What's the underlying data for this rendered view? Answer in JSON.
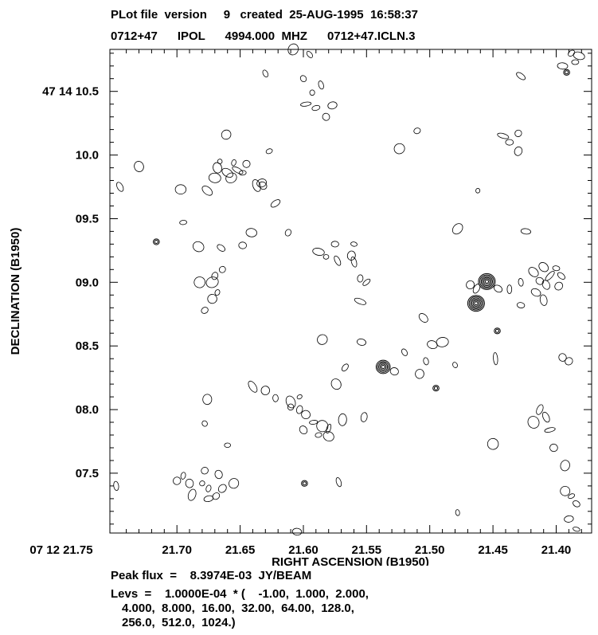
{
  "header": {
    "line1": "PLot file  version     9   created  25-AUG-1995  16:58:37",
    "line2": "0712+47      IPOL      4994.000  MHZ      0712+47.ICLN.3"
  },
  "footer": {
    "peak": "Peak flux  =    8.3974E-03  JY/BEAM",
    "levs1": "Levs  =    1.0000E-04  * (    -1.00,  1.000,  2.000,",
    "levs2": "4.000,  8.000,  16.00,  32.00,  64.00,  128.0,",
    "levs3": "256.0,  512.0,  1024.)"
  },
  "chart_data": {
    "type": "contour",
    "xlabel": "RIGHT  ASCENSION  (B1950)",
    "ylabel": "DECLINATION  (B1950)",
    "xlim": [
      21.753,
      21.372
    ],
    "ylim": [
      7.03,
      10.83
    ],
    "x_ticks": [
      {
        "value": 21.75,
        "label": "07  12  21.75"
      },
      {
        "value": 21.7,
        "label": "21.70"
      },
      {
        "value": 21.65,
        "label": "21.65"
      },
      {
        "value": 21.6,
        "label": "21.60"
      },
      {
        "value": 21.55,
        "label": "21.55"
      },
      {
        "value": 21.5,
        "label": "21.50"
      },
      {
        "value": 21.45,
        "label": "21.45"
      },
      {
        "value": 21.4,
        "label": "21.40"
      }
    ],
    "y_ticks": [
      {
        "value": 10.5,
        "label": "47  14  10.5"
      },
      {
        "value": 10.0,
        "label": "10.0"
      },
      {
        "value": 9.5,
        "label": "09.5"
      },
      {
        "value": 9.0,
        "label": "09.0"
      },
      {
        "value": 8.5,
        "label": "08.5"
      },
      {
        "value": 8.0,
        "label": "08.0"
      },
      {
        "value": 7.5,
        "label": "07.5"
      }
    ],
    "sources": [
      {
        "ra": 21.4549,
        "dec": 9.006,
        "rings": 6
      },
      {
        "ra": 21.4634,
        "dec": 8.835,
        "rings": 6
      },
      {
        "ra": 21.5369,
        "dec": 8.335,
        "rings": 5
      },
      {
        "ra": 21.4466,
        "dec": 8.618,
        "rings": 2
      },
      {
        "ra": 21.7163,
        "dec": 9.318,
        "rings": 2
      },
      {
        "ra": 21.4951,
        "dec": 8.168,
        "rings": 2
      },
      {
        "ra": 21.5991,
        "dec": 7.42,
        "rings": 2
      },
      {
        "ra": 21.3918,
        "dec": 10.65,
        "rings": 2
      }
    ],
    "contours": [
      [
        21.43,
        10.03
      ],
      [
        21.437,
        10.1
      ],
      [
        21.442,
        10.15
      ],
      [
        21.43,
        10.17
      ],
      [
        21.437,
        8.945
      ],
      [
        21.463,
        8.95
      ],
      [
        21.468,
        8.98
      ],
      [
        21.448,
        8.4
      ],
      [
        21.428,
        9.0
      ],
      [
        21.428,
        8.82
      ],
      [
        21.446,
        8.95
      ],
      [
        21.418,
        9.08
      ],
      [
        21.413,
        9.01
      ],
      [
        21.408,
        8.98
      ],
      [
        21.405,
        9.05
      ],
      [
        21.41,
        9.12
      ],
      [
        21.398,
        8.97
      ],
      [
        21.396,
        9.05
      ],
      [
        21.4,
        9.11
      ],
      [
        21.416,
        8.92
      ],
      [
        21.41,
        8.86
      ],
      [
        21.395,
        8.41
      ],
      [
        21.39,
        8.38
      ],
      [
        21.413,
        8.0
      ],
      [
        21.408,
        7.94
      ],
      [
        21.418,
        7.9
      ],
      [
        21.393,
        7.36
      ],
      [
        21.388,
        7.32
      ],
      [
        21.384,
        7.26
      ],
      [
        21.39,
        7.14
      ],
      [
        21.384,
        7.06
      ],
      [
        21.385,
        10.73
      ],
      [
        21.382,
        10.78
      ],
      [
        21.388,
        10.8
      ],
      [
        21.395,
        10.7
      ],
      [
        21.428,
        10.62
      ],
      [
        21.478,
        9.42
      ],
      [
        21.424,
        9.4
      ],
      [
        21.462,
        9.72
      ],
      [
        21.608,
        10.83
      ],
      [
        21.595,
        10.79
      ],
      [
        21.63,
        10.64
      ],
      [
        21.6,
        10.6
      ],
      [
        21.593,
        10.49
      ],
      [
        21.586,
        10.55
      ],
      [
        21.59,
        10.37
      ],
      [
        21.598,
        10.4
      ],
      [
        21.577,
        10.39
      ],
      [
        21.661,
        10.16
      ],
      [
        21.627,
        10.03
      ],
      [
        21.666,
        9.95
      ],
      [
        21.655,
        9.94
      ],
      [
        21.645,
        9.93
      ],
      [
        21.668,
        9.9
      ],
      [
        21.652,
        9.88
      ],
      [
        21.66,
        9.86
      ],
      [
        21.637,
        9.76
      ],
      [
        21.632,
        9.76
      ],
      [
        21.67,
        9.82
      ],
      [
        21.657,
        9.82
      ],
      [
        21.648,
        9.86
      ],
      [
        21.633,
        9.78
      ],
      [
        21.697,
        9.73
      ],
      [
        21.676,
        9.72
      ],
      [
        21.695,
        9.47
      ],
      [
        21.683,
        9.28
      ],
      [
        21.665,
        9.27
      ],
      [
        21.648,
        9.29
      ],
      [
        21.641,
        9.39
      ],
      [
        21.612,
        9.39
      ],
      [
        21.622,
        9.62
      ],
      [
        21.73,
        9.91
      ],
      [
        21.745,
        9.75
      ],
      [
        21.588,
        9.24
      ],
      [
        21.582,
        9.2
      ],
      [
        21.575,
        9.3
      ],
      [
        21.56,
        9.3
      ],
      [
        21.562,
        9.21
      ],
      [
        21.56,
        9.16
      ],
      [
        21.555,
        9.03
      ],
      [
        21.573,
        9.17
      ],
      [
        21.55,
        9.0
      ],
      [
        21.664,
        9.1
      ],
      [
        21.67,
        9.05
      ],
      [
        21.672,
        9.0
      ],
      [
        21.682,
        9.0
      ],
      [
        21.668,
        8.92
      ],
      [
        21.672,
        8.87
      ],
      [
        21.678,
        8.78
      ],
      [
        21.555,
        8.85
      ],
      [
        21.585,
        8.55
      ],
      [
        21.567,
        8.33
      ],
      [
        21.574,
        8.2
      ],
      [
        21.554,
        8.53
      ],
      [
        21.52,
        8.45
      ],
      [
        21.508,
        8.28
      ],
      [
        21.528,
        8.3
      ],
      [
        21.503,
        8.38
      ],
      [
        21.49,
        8.53
      ],
      [
        21.498,
        8.51
      ],
      [
        21.505,
        8.72
      ],
      [
        21.48,
        8.35
      ],
      [
        21.64,
        8.18
      ],
      [
        21.63,
        8.15
      ],
      [
        21.622,
        8.09
      ],
      [
        21.61,
        8.02
      ],
      [
        21.603,
        8.0
      ],
      [
        21.598,
        7.96
      ],
      [
        21.592,
        7.9
      ],
      [
        21.58,
        7.85
      ],
      [
        21.588,
        7.8
      ],
      [
        21.61,
        8.06
      ],
      [
        21.603,
        8.1
      ],
      [
        21.585,
        7.87
      ],
      [
        21.569,
        7.92
      ],
      [
        21.552,
        7.94
      ],
      [
        21.6,
        7.84
      ],
      [
        21.58,
        7.79
      ],
      [
        21.676,
        8.08
      ],
      [
        21.678,
        7.89
      ],
      [
        21.66,
        7.72
      ],
      [
        21.69,
        7.42
      ],
      [
        21.695,
        7.48
      ],
      [
        21.68,
        7.42
      ],
      [
        21.675,
        7.38
      ],
      [
        21.678,
        7.52
      ],
      [
        21.667,
        7.49
      ],
      [
        21.664,
        7.38
      ],
      [
        21.669,
        7.32
      ],
      [
        21.675,
        7.3
      ],
      [
        21.688,
        7.33
      ],
      [
        21.7,
        7.44
      ],
      [
        21.655,
        7.42
      ],
      [
        21.748,
        7.4
      ],
      [
        21.572,
        7.43
      ],
      [
        21.478,
        7.19
      ],
      [
        21.605,
        7.04
      ],
      [
        21.402,
        7.7
      ],
      [
        21.405,
        7.84
      ],
      [
        21.393,
        7.56
      ],
      [
        21.45,
        7.73
      ],
      [
        21.51,
        10.19
      ],
      [
        21.524,
        10.05
      ],
      [
        21.582,
        10.3
      ]
    ]
  }
}
